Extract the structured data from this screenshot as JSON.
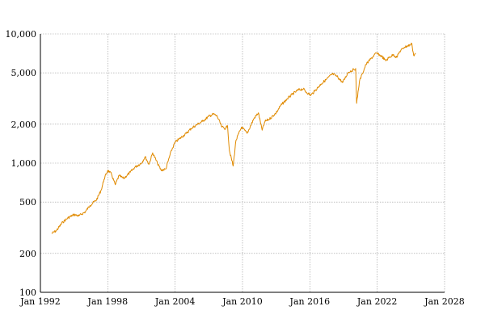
{
  "chart_data": {
    "type": "line",
    "title": "",
    "xlabel": "",
    "ylabel": "",
    "y_scale": "log",
    "ylim": [
      100,
      10000
    ],
    "xlim": [
      "1992-01",
      "2028-01"
    ],
    "grid": true,
    "line_color": "#e08a00",
    "y_ticks": [
      {
        "value": 100,
        "label": "100"
      },
      {
        "value": 200,
        "label": "200"
      },
      {
        "value": 500,
        "label": "500"
      },
      {
        "value": 1000,
        "label": "1,000"
      },
      {
        "value": 2000,
        "label": "2,000"
      },
      {
        "value": 5000,
        "label": "5,000"
      },
      {
        "value": 10000,
        "label": "10,000"
      }
    ],
    "x_ticks": [
      {
        "value": "1992-01",
        "label": "Jan 1992"
      },
      {
        "value": "1998-01",
        "label": "Jan 1998"
      },
      {
        "value": "2004-01",
        "label": "Jan 2004"
      },
      {
        "value": "2010-01",
        "label": "Jan 2010"
      },
      {
        "value": "2016-01",
        "label": "Jan 2016"
      },
      {
        "value": "2022-01",
        "label": "Jan 2022"
      },
      {
        "value": "2028-01",
        "label": "Jan 2028"
      }
    ],
    "series": [
      {
        "points": [
          [
            "1993-01",
            285
          ],
          [
            "1993-06",
            300
          ],
          [
            "1994-01",
            350
          ],
          [
            "1994-06",
            375
          ],
          [
            "1995-01",
            400
          ],
          [
            "1995-06",
            390
          ],
          [
            "1996-01",
            420
          ],
          [
            "1996-06",
            470
          ],
          [
            "1997-01",
            520
          ],
          [
            "1997-06",
            620
          ],
          [
            "1997-09",
            750
          ],
          [
            "1998-01",
            880
          ],
          [
            "1998-05",
            820
          ],
          [
            "1998-09",
            680
          ],
          [
            "1999-01",
            800
          ],
          [
            "1999-06",
            760
          ],
          [
            "2000-01",
            850
          ],
          [
            "2000-06",
            930
          ],
          [
            "2001-01",
            1000
          ],
          [
            "2001-05",
            1120
          ],
          [
            "2001-09",
            980
          ],
          [
            "2002-01",
            1200
          ],
          [
            "2002-06",
            1000
          ],
          [
            "2002-10",
            880
          ],
          [
            "2003-03",
            900
          ],
          [
            "2003-09",
            1250
          ],
          [
            "2004-01",
            1450
          ],
          [
            "2004-06",
            1550
          ],
          [
            "2005-01",
            1700
          ],
          [
            "2005-06",
            1850
          ],
          [
            "2006-01",
            2000
          ],
          [
            "2006-06",
            2100
          ],
          [
            "2007-01",
            2300
          ],
          [
            "2007-06",
            2400
          ],
          [
            "2007-10",
            2300
          ],
          [
            "2008-03",
            1900
          ],
          [
            "2008-07",
            1850
          ],
          [
            "2008-09",
            1950
          ],
          [
            "2008-11",
            1250
          ],
          [
            "2009-03",
            950
          ],
          [
            "2009-06",
            1500
          ],
          [
            "2009-12",
            1900
          ],
          [
            "2010-06",
            1700
          ],
          [
            "2011-01",
            2200
          ],
          [
            "2011-06",
            2450
          ],
          [
            "2011-10",
            1800
          ],
          [
            "2012-01",
            2100
          ],
          [
            "2012-06",
            2200
          ],
          [
            "2013-01",
            2450
          ],
          [
            "2013-06",
            2800
          ],
          [
            "2014-01",
            3150
          ],
          [
            "2014-06",
            3400
          ],
          [
            "2015-01",
            3700
          ],
          [
            "2015-06",
            3750
          ],
          [
            "2015-09",
            3550
          ],
          [
            "2016-02",
            3350
          ],
          [
            "2016-06",
            3600
          ],
          [
            "2017-01",
            4100
          ],
          [
            "2017-06",
            4400
          ],
          [
            "2018-01",
            4900
          ],
          [
            "2018-06",
            4700
          ],
          [
            "2018-12",
            4200
          ],
          [
            "2019-06",
            5050
          ],
          [
            "2019-12",
            5300
          ],
          [
            "2020-02",
            5400
          ],
          [
            "2020-03",
            2900
          ],
          [
            "2020-06",
            4300
          ],
          [
            "2020-09",
            4900
          ],
          [
            "2021-01",
            5800
          ],
          [
            "2021-06",
            6400
          ],
          [
            "2021-12",
            7100
          ],
          [
            "2022-06",
            6700
          ],
          [
            "2022-10",
            6200
          ],
          [
            "2023-01",
            6500
          ],
          [
            "2023-06",
            6900
          ],
          [
            "2023-10",
            6600
          ],
          [
            "2024-01",
            7300
          ],
          [
            "2024-06",
            7900
          ],
          [
            "2024-12",
            8200
          ],
          [
            "2025-02",
            8400
          ],
          [
            "2025-04",
            6800
          ],
          [
            "2025-06",
            7100
          ]
        ]
      }
    ]
  }
}
